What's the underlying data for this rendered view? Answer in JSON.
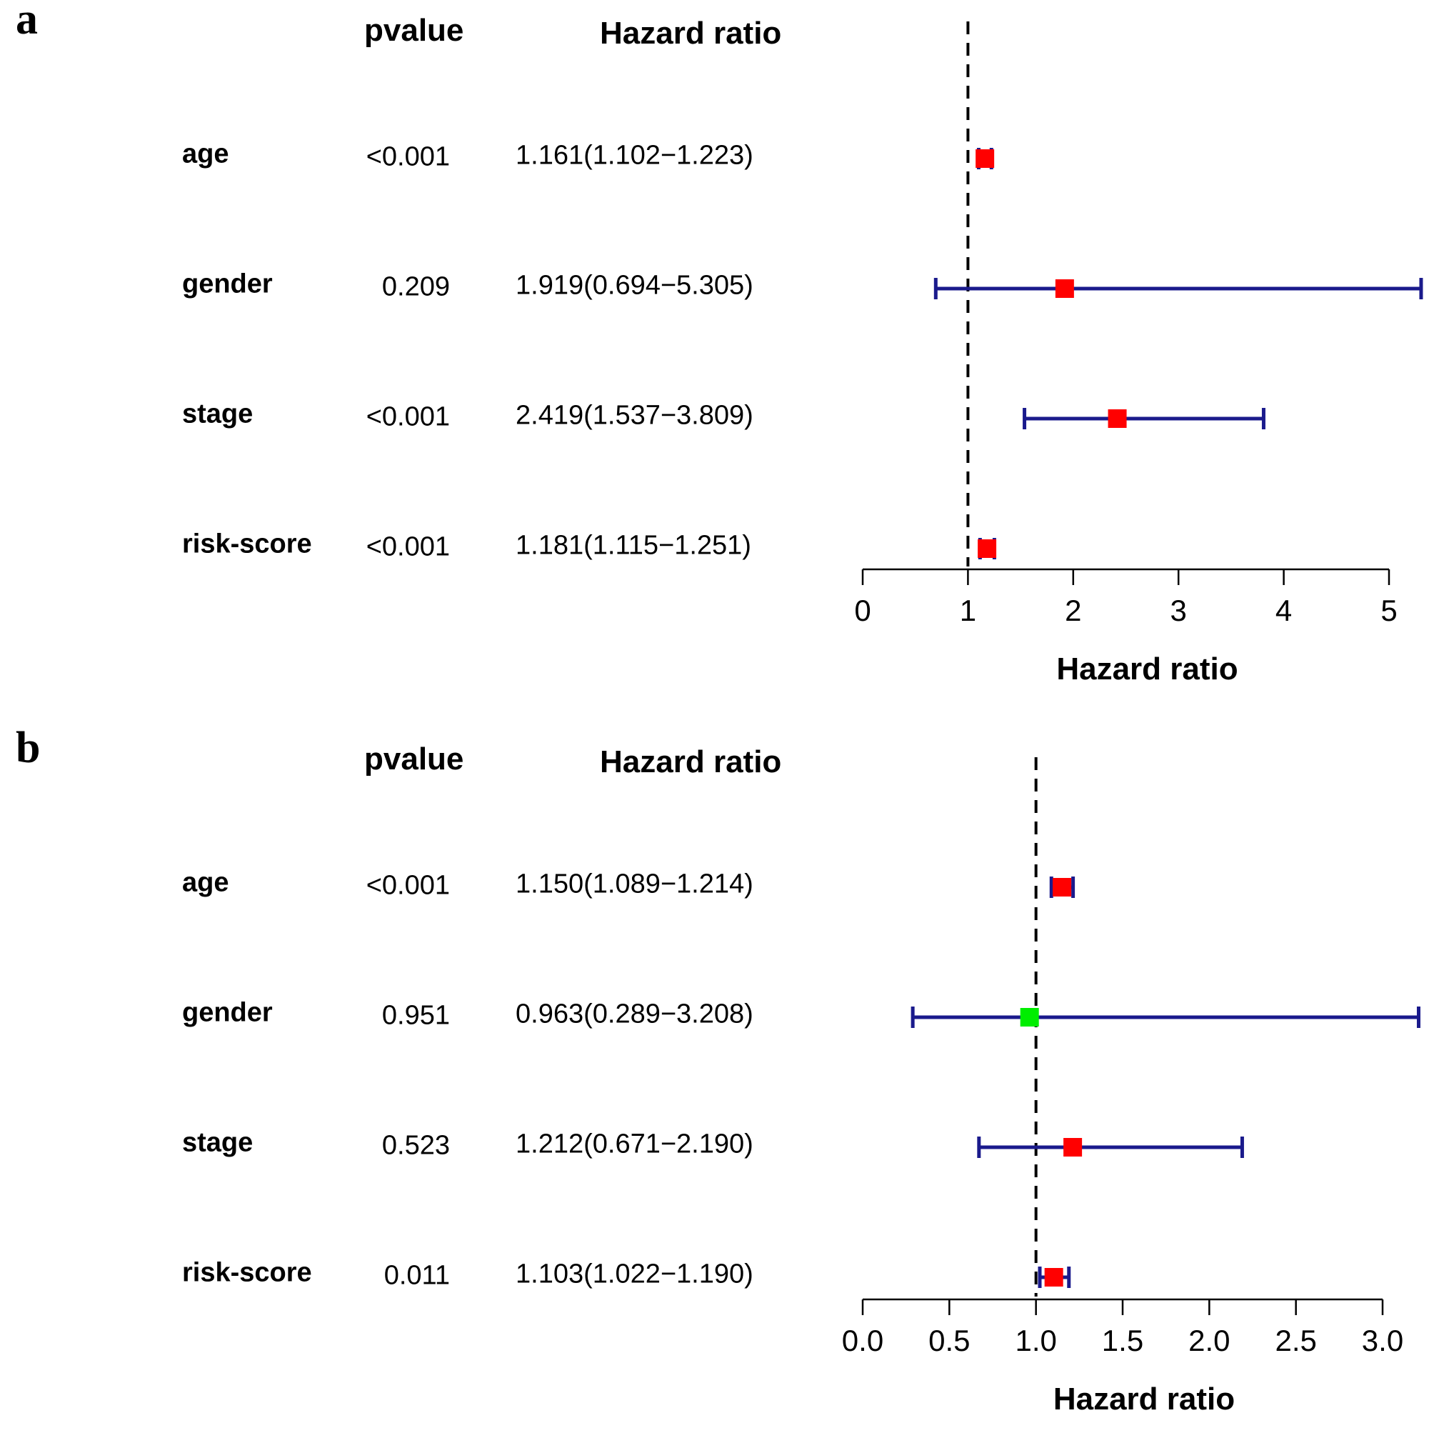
{
  "chart_data": [
    {
      "type": "forest",
      "panel_label": "a",
      "col_headers": {
        "pvalue": "pvalue",
        "hr": "Hazard ratio"
      },
      "xlabel": "Hazard ratio",
      "reference_line": 1,
      "xlim": [
        0,
        5
      ],
      "ticks": [
        "0",
        "1",
        "2",
        "3",
        "4",
        "5"
      ],
      "rows": [
        {
          "label": "age",
          "pvalue": "<0.001",
          "hr_text": "1.161(1.102−1.223)",
          "hr": 1.161,
          "lower": 1.102,
          "upper": 1.223,
          "color": "#ff0000"
        },
        {
          "label": "gender",
          "pvalue": "0.209",
          "hr_text": "1.919(0.694−5.305)",
          "hr": 1.919,
          "lower": 0.694,
          "upper": 5.305,
          "color": "#ff0000"
        },
        {
          "label": "stage",
          "pvalue": "<0.001",
          "hr_text": "2.419(1.537−3.809)",
          "hr": 2.419,
          "lower": 1.537,
          "upper": 3.809,
          "color": "#ff0000"
        },
        {
          "label": "risk-score",
          "pvalue": "<0.001",
          "hr_text": "1.181(1.115−1.251)",
          "hr": 1.181,
          "lower": 1.115,
          "upper": 1.251,
          "color": "#ff0000"
        }
      ]
    },
    {
      "type": "forest",
      "panel_label": "b",
      "col_headers": {
        "pvalue": "pvalue",
        "hr": "Hazard ratio"
      },
      "xlabel": "Hazard ratio",
      "reference_line": 1,
      "xlim": [
        0,
        3
      ],
      "ticks": [
        "0.0",
        "0.5",
        "1.0",
        "1.5",
        "2.0",
        "2.5",
        "3.0"
      ],
      "rows": [
        {
          "label": "age",
          "pvalue": "<0.001",
          "hr_text": "1.150(1.089−1.214)",
          "hr": 1.15,
          "lower": 1.089,
          "upper": 1.214,
          "color": "#ff0000"
        },
        {
          "label": "gender",
          "pvalue": "0.951",
          "hr_text": "0.963(0.289−3.208)",
          "hr": 0.963,
          "lower": 0.289,
          "upper": 3.208,
          "color": "#00ee00"
        },
        {
          "label": "stage",
          "pvalue": "0.523",
          "hr_text": "1.212(0.671−2.190)",
          "hr": 1.212,
          "lower": 0.671,
          "upper": 2.19,
          "color": "#ff0000"
        },
        {
          "label": "risk-score",
          "pvalue": "0.011",
          "hr_text": "1.103(1.022−1.190)",
          "hr": 1.103,
          "lower": 1.022,
          "upper": 1.19,
          "color": "#ff0000"
        }
      ]
    }
  ],
  "colors": {
    "ci_line": "#1a1a8c",
    "reference_line": "#000000"
  }
}
